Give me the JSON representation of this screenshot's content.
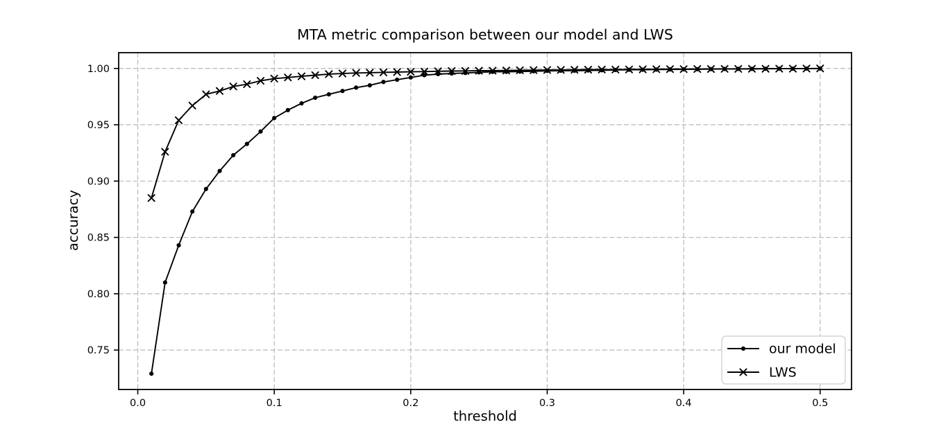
{
  "figure": {
    "background": "#ffffff"
  },
  "colors": {
    "line": "#000000",
    "grid": "#b8b8b8",
    "spine": "#000000",
    "tick_text": "#000000",
    "legend_border": "#cccccc",
    "legend_background": "#ffffff"
  },
  "chart_data": {
    "type": "line",
    "title": "MTA metric comparison between our model and LWS",
    "xlabel": "threshold",
    "ylabel": "accuracy",
    "xlim": [
      -0.014,
      0.523
    ],
    "ylim": [
      0.715,
      1.014
    ],
    "grid": "dashed",
    "legend_position": "lower right",
    "xticks": {
      "values": [
        0.0,
        0.1,
        0.2,
        0.3,
        0.4,
        0.5
      ],
      "labels": [
        "0.0",
        "0.1",
        "0.2",
        "0.3",
        "0.4",
        "0.5"
      ]
    },
    "yticks": {
      "values": [
        0.75,
        0.8,
        0.85,
        0.9,
        0.95,
        1.0
      ],
      "labels": [
        "0.75",
        "0.80",
        "0.85",
        "0.90",
        "0.95",
        "1.00"
      ]
    },
    "x": [
      0.01,
      0.02,
      0.03,
      0.04,
      0.05,
      0.06,
      0.07,
      0.08,
      0.09,
      0.1,
      0.11,
      0.12,
      0.13,
      0.14,
      0.15,
      0.16,
      0.17,
      0.18,
      0.19,
      0.2,
      0.21,
      0.22,
      0.23,
      0.24,
      0.25,
      0.26,
      0.27,
      0.28,
      0.29,
      0.3,
      0.31,
      0.32,
      0.33,
      0.34,
      0.35,
      0.36,
      0.37,
      0.38,
      0.39,
      0.4,
      0.41,
      0.42,
      0.43,
      0.44,
      0.45,
      0.46,
      0.47,
      0.48,
      0.49,
      0.5
    ],
    "series": [
      {
        "name": "our model",
        "marker": "dot",
        "color": "#000000",
        "values": [
          0.729,
          0.81,
          0.843,
          0.873,
          0.893,
          0.909,
          0.923,
          0.933,
          0.944,
          0.956,
          0.963,
          0.969,
          0.974,
          0.977,
          0.98,
          0.983,
          0.985,
          0.988,
          0.99,
          0.992,
          0.994,
          0.995,
          0.9955,
          0.996,
          0.9965,
          0.997,
          0.997,
          0.9972,
          0.9975,
          0.9978,
          0.998,
          0.998,
          0.9982,
          0.9984,
          0.9986,
          0.9988,
          0.9989,
          0.999,
          0.9991,
          0.9992,
          0.9993,
          0.9994,
          0.9995,
          0.9996,
          0.9996,
          0.9997,
          0.9998,
          0.9998,
          0.9999,
          1.0
        ]
      },
      {
        "name": "LWS",
        "marker": "x",
        "color": "#000000",
        "values": [
          0.885,
          0.926,
          0.954,
          0.967,
          0.977,
          0.98,
          0.984,
          0.986,
          0.989,
          0.991,
          0.992,
          0.993,
          0.994,
          0.995,
          0.9955,
          0.996,
          0.9962,
          0.9965,
          0.9968,
          0.997,
          0.9972,
          0.9975,
          0.9977,
          0.9978,
          0.998,
          0.998,
          0.9982,
          0.9984,
          0.9985,
          0.9986,
          0.9987,
          0.9988,
          0.9989,
          0.999,
          0.999,
          0.9991,
          0.9992,
          0.9993,
          0.9994,
          0.9994,
          0.9995,
          0.9995,
          0.9996,
          0.9996,
          0.9997,
          0.9997,
          0.9998,
          0.9998,
          0.9999,
          1.0
        ]
      }
    ]
  }
}
